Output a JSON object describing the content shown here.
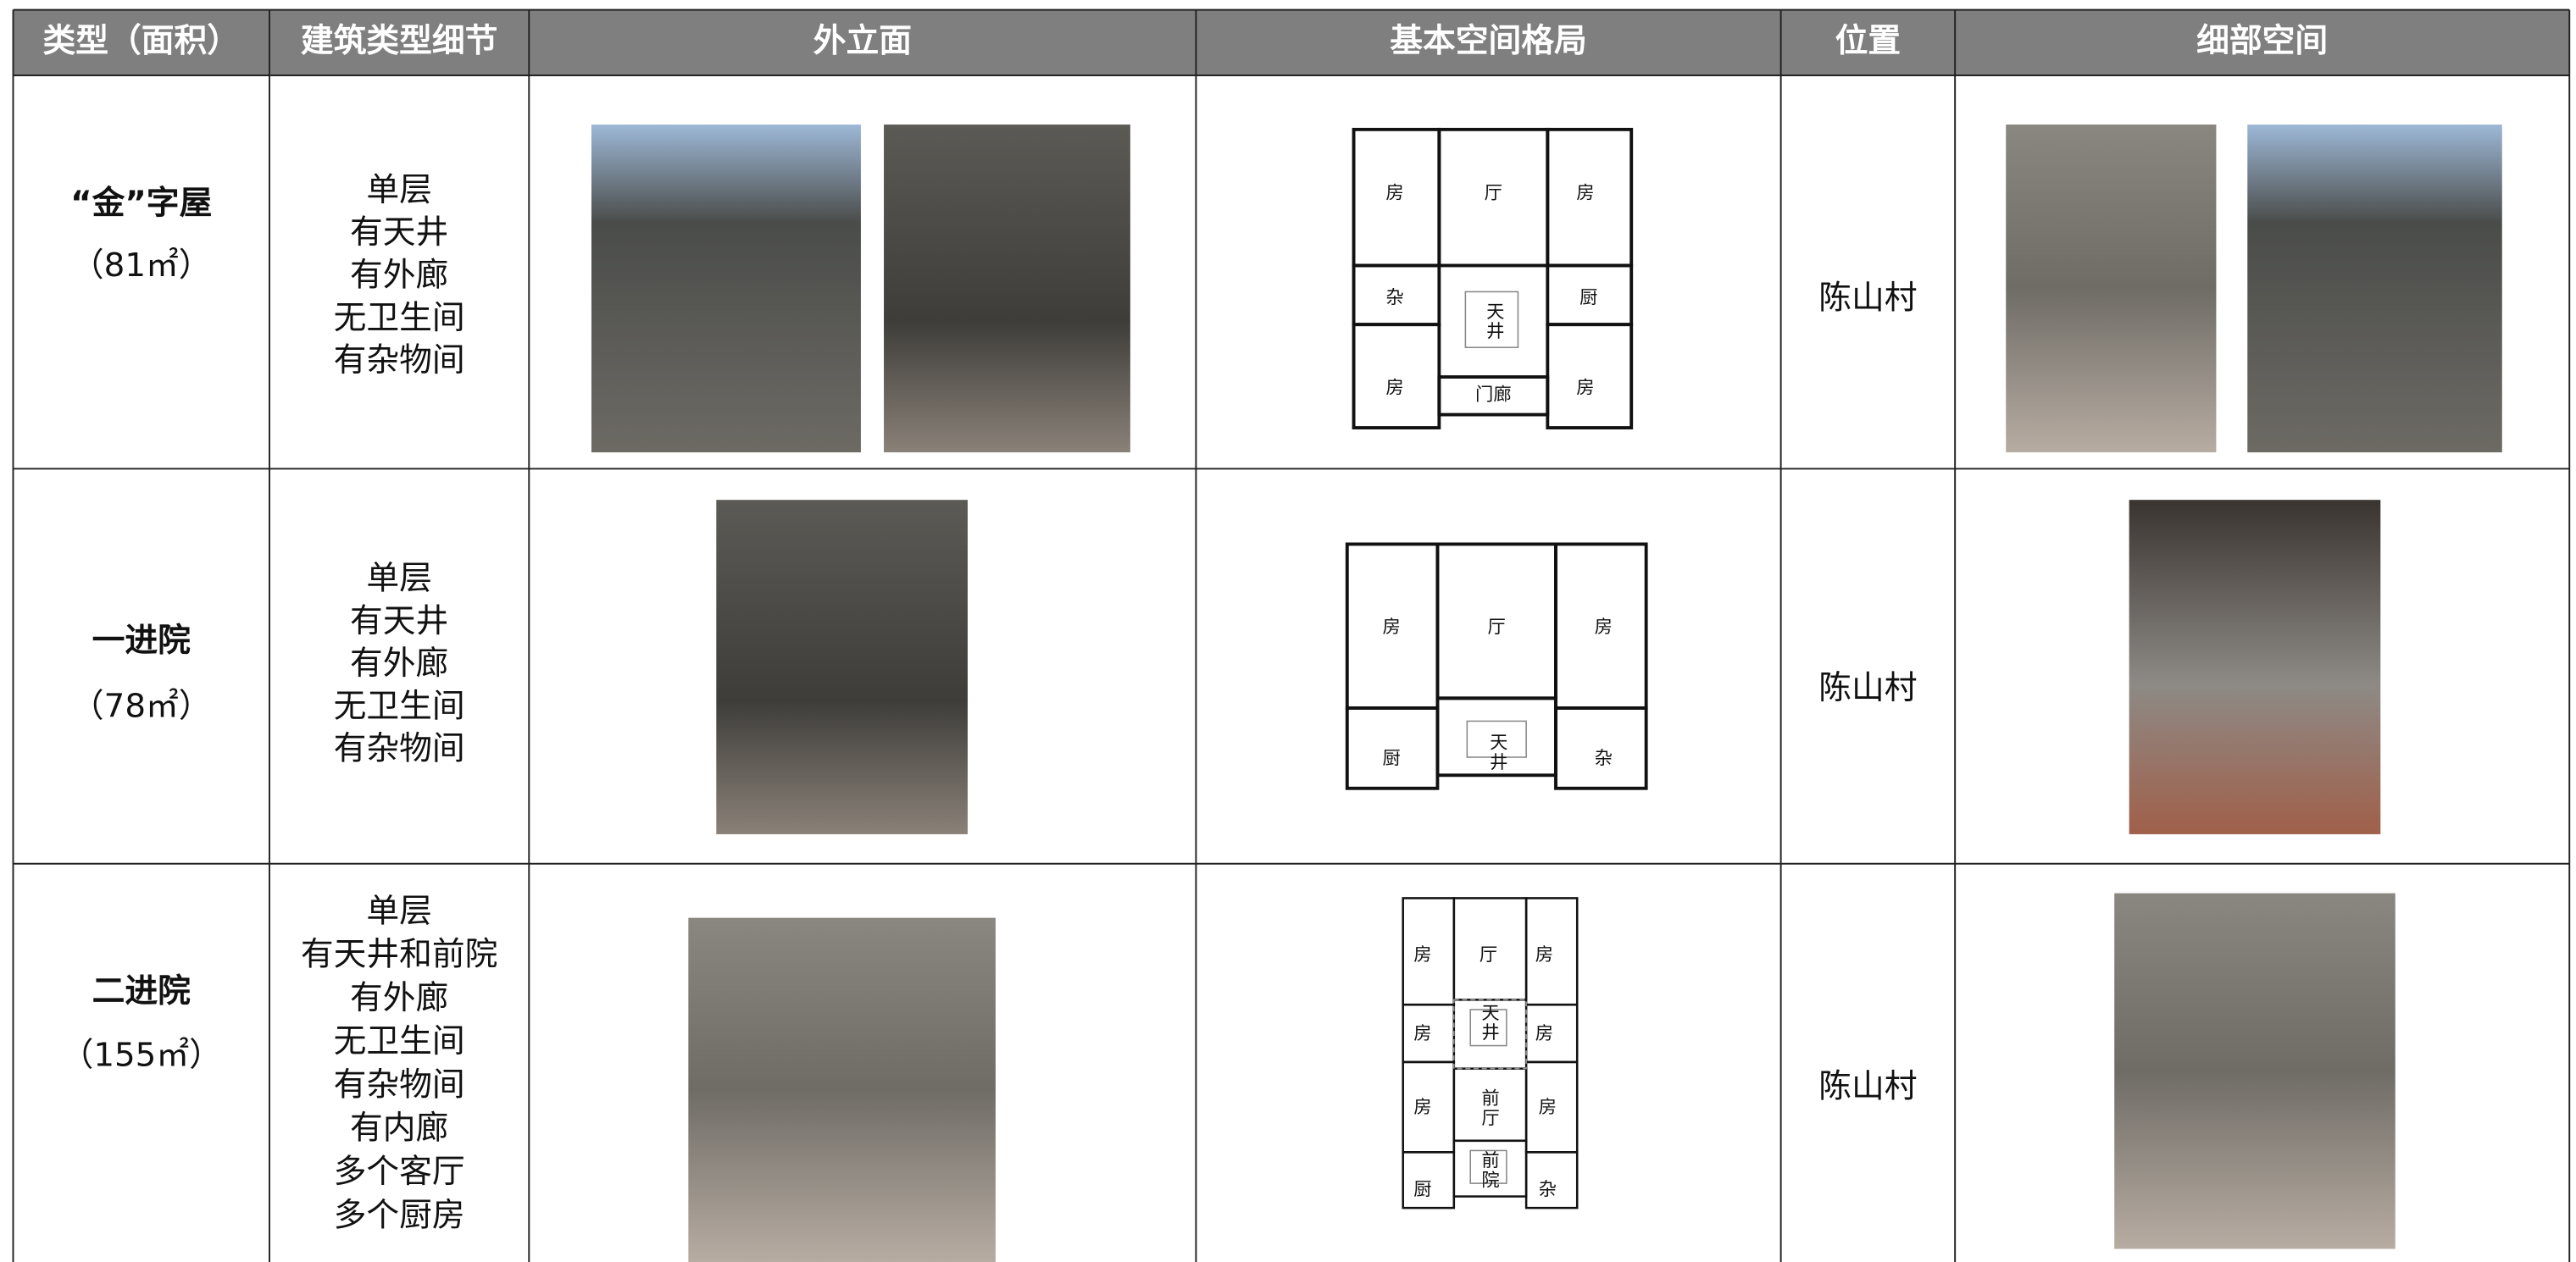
{
  "table": {
    "header": [
      "类型（面积）",
      "建筑类型细节",
      "外立面",
      "基本空间格局",
      "位置",
      "细部空间"
    ],
    "rows": [
      {
        "type": "“金”字屋",
        "area": "（81㎡）",
        "details": [
          "单层",
          "有天井",
          "有外廊",
          "无卫生间",
          "有杂物间"
        ],
        "plan": [
          "房",
          "厅",
          "房",
          "杂",
          "天井",
          "厨",
          "房",
          "门廊",
          "房"
        ],
        "location": "陈山村"
      },
      {
        "type": "一进院",
        "area": "（78㎡）",
        "details": [
          "单层",
          "有天井",
          "有外廊",
          "无卫生间",
          "有杂物间"
        ],
        "plan": [
          "房",
          "厅",
          "房",
          "厨",
          "天井",
          "杂"
        ],
        "location": "陈山村"
      },
      {
        "type": "二进院",
        "area": "（155㎡）",
        "details": [
          "单层",
          "有天井和前院",
          "有外廊",
          "无卫生间",
          "有杂物间",
          "有内廊",
          "多个客厅",
          "多个厨房"
        ],
        "plan": [
          "房",
          "厅",
          "房",
          "天井",
          "房",
          "房",
          "房",
          "前厅",
          "房",
          "前院",
          "厨",
          "杂"
        ],
        "location": "陈山村"
      }
    ]
  }
}
